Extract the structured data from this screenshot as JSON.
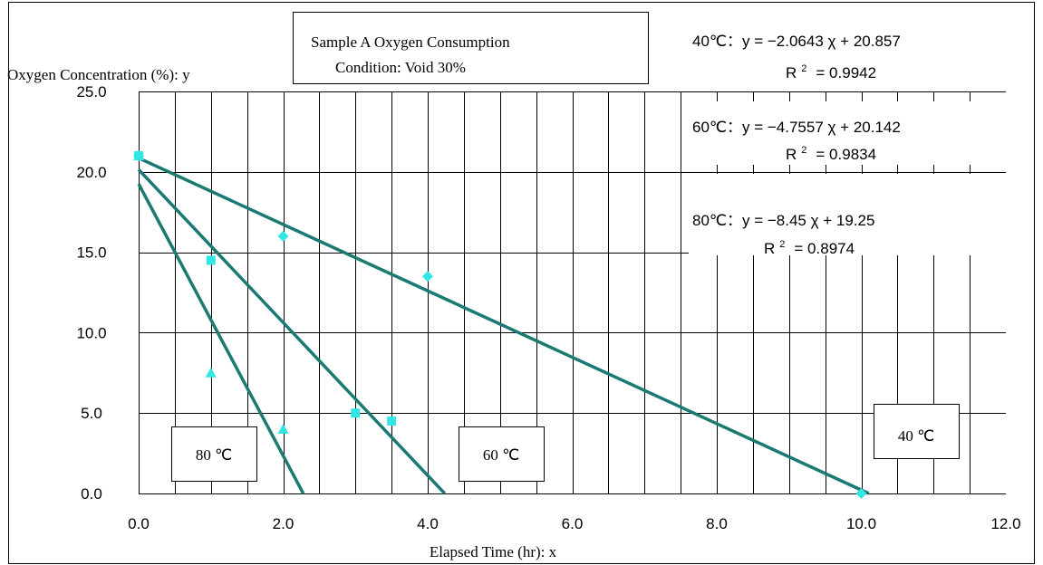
{
  "chart_data": {
    "type": "scatter",
    "title": [
      "Sample A   Oxygen Consumption",
      "Condition:   Void 30%"
    ],
    "xlabel": "Elapsed Time (hr): x",
    "ylabel": "Oxygen Concentration (%): y",
    "xlim": [
      0,
      12
    ],
    "ylim": [
      0,
      25
    ],
    "x_tick_labels": [
      "0.0",
      "2.0",
      "4.0",
      "6.0",
      "8.0",
      "10.0",
      "12.0"
    ],
    "y_tick_labels": [
      "0.0",
      "5.0",
      "10.0",
      "15.0",
      "20.0",
      "25.0"
    ],
    "minor_grid_x_step": 0.5,
    "major_grid_y_step": 5,
    "grid": true,
    "colors": {
      "line": "#1a7a72",
      "marker": "#33e6e6",
      "axis": "#000000"
    },
    "series": [
      {
        "label": "40 ℃",
        "marker": "diamond",
        "points": [
          [
            0,
            21.0
          ],
          [
            2,
            16.0
          ],
          [
            4,
            13.5
          ],
          [
            10,
            0.0
          ]
        ],
        "trendline": {
          "slope": -2.0643,
          "intercept": 20.857
        },
        "equation": "40℃：y = −2.0643 χ   + 20.857",
        "r2_label": "R",
        "r2_sup": "2",
        "r2_value": "= 0.9942"
      },
      {
        "label": "60 ℃",
        "marker": "square",
        "points": [
          [
            0,
            21.0
          ],
          [
            1,
            14.5
          ],
          [
            3,
            5.0
          ],
          [
            3.5,
            4.5
          ]
        ],
        "trendline": {
          "slope": -4.7557,
          "intercept": 20.142
        },
        "equation": "60℃：y = −4.7557 χ   + 20.142",
        "r2_label": "R",
        "r2_sup": "2",
        "r2_value": "= 0.9834"
      },
      {
        "label": "80 ℃",
        "marker": "triangle",
        "points": [
          [
            0,
            21.0
          ],
          [
            1,
            7.5
          ],
          [
            2,
            4.0
          ]
        ],
        "trendline": {
          "slope": -8.45,
          "intercept": 19.25
        },
        "equation": "80℃：y = −8.45 χ   + 19.25",
        "r2_label": "R",
        "r2_sup": "2",
        "r2_value": "= 0.8974"
      }
    ]
  }
}
